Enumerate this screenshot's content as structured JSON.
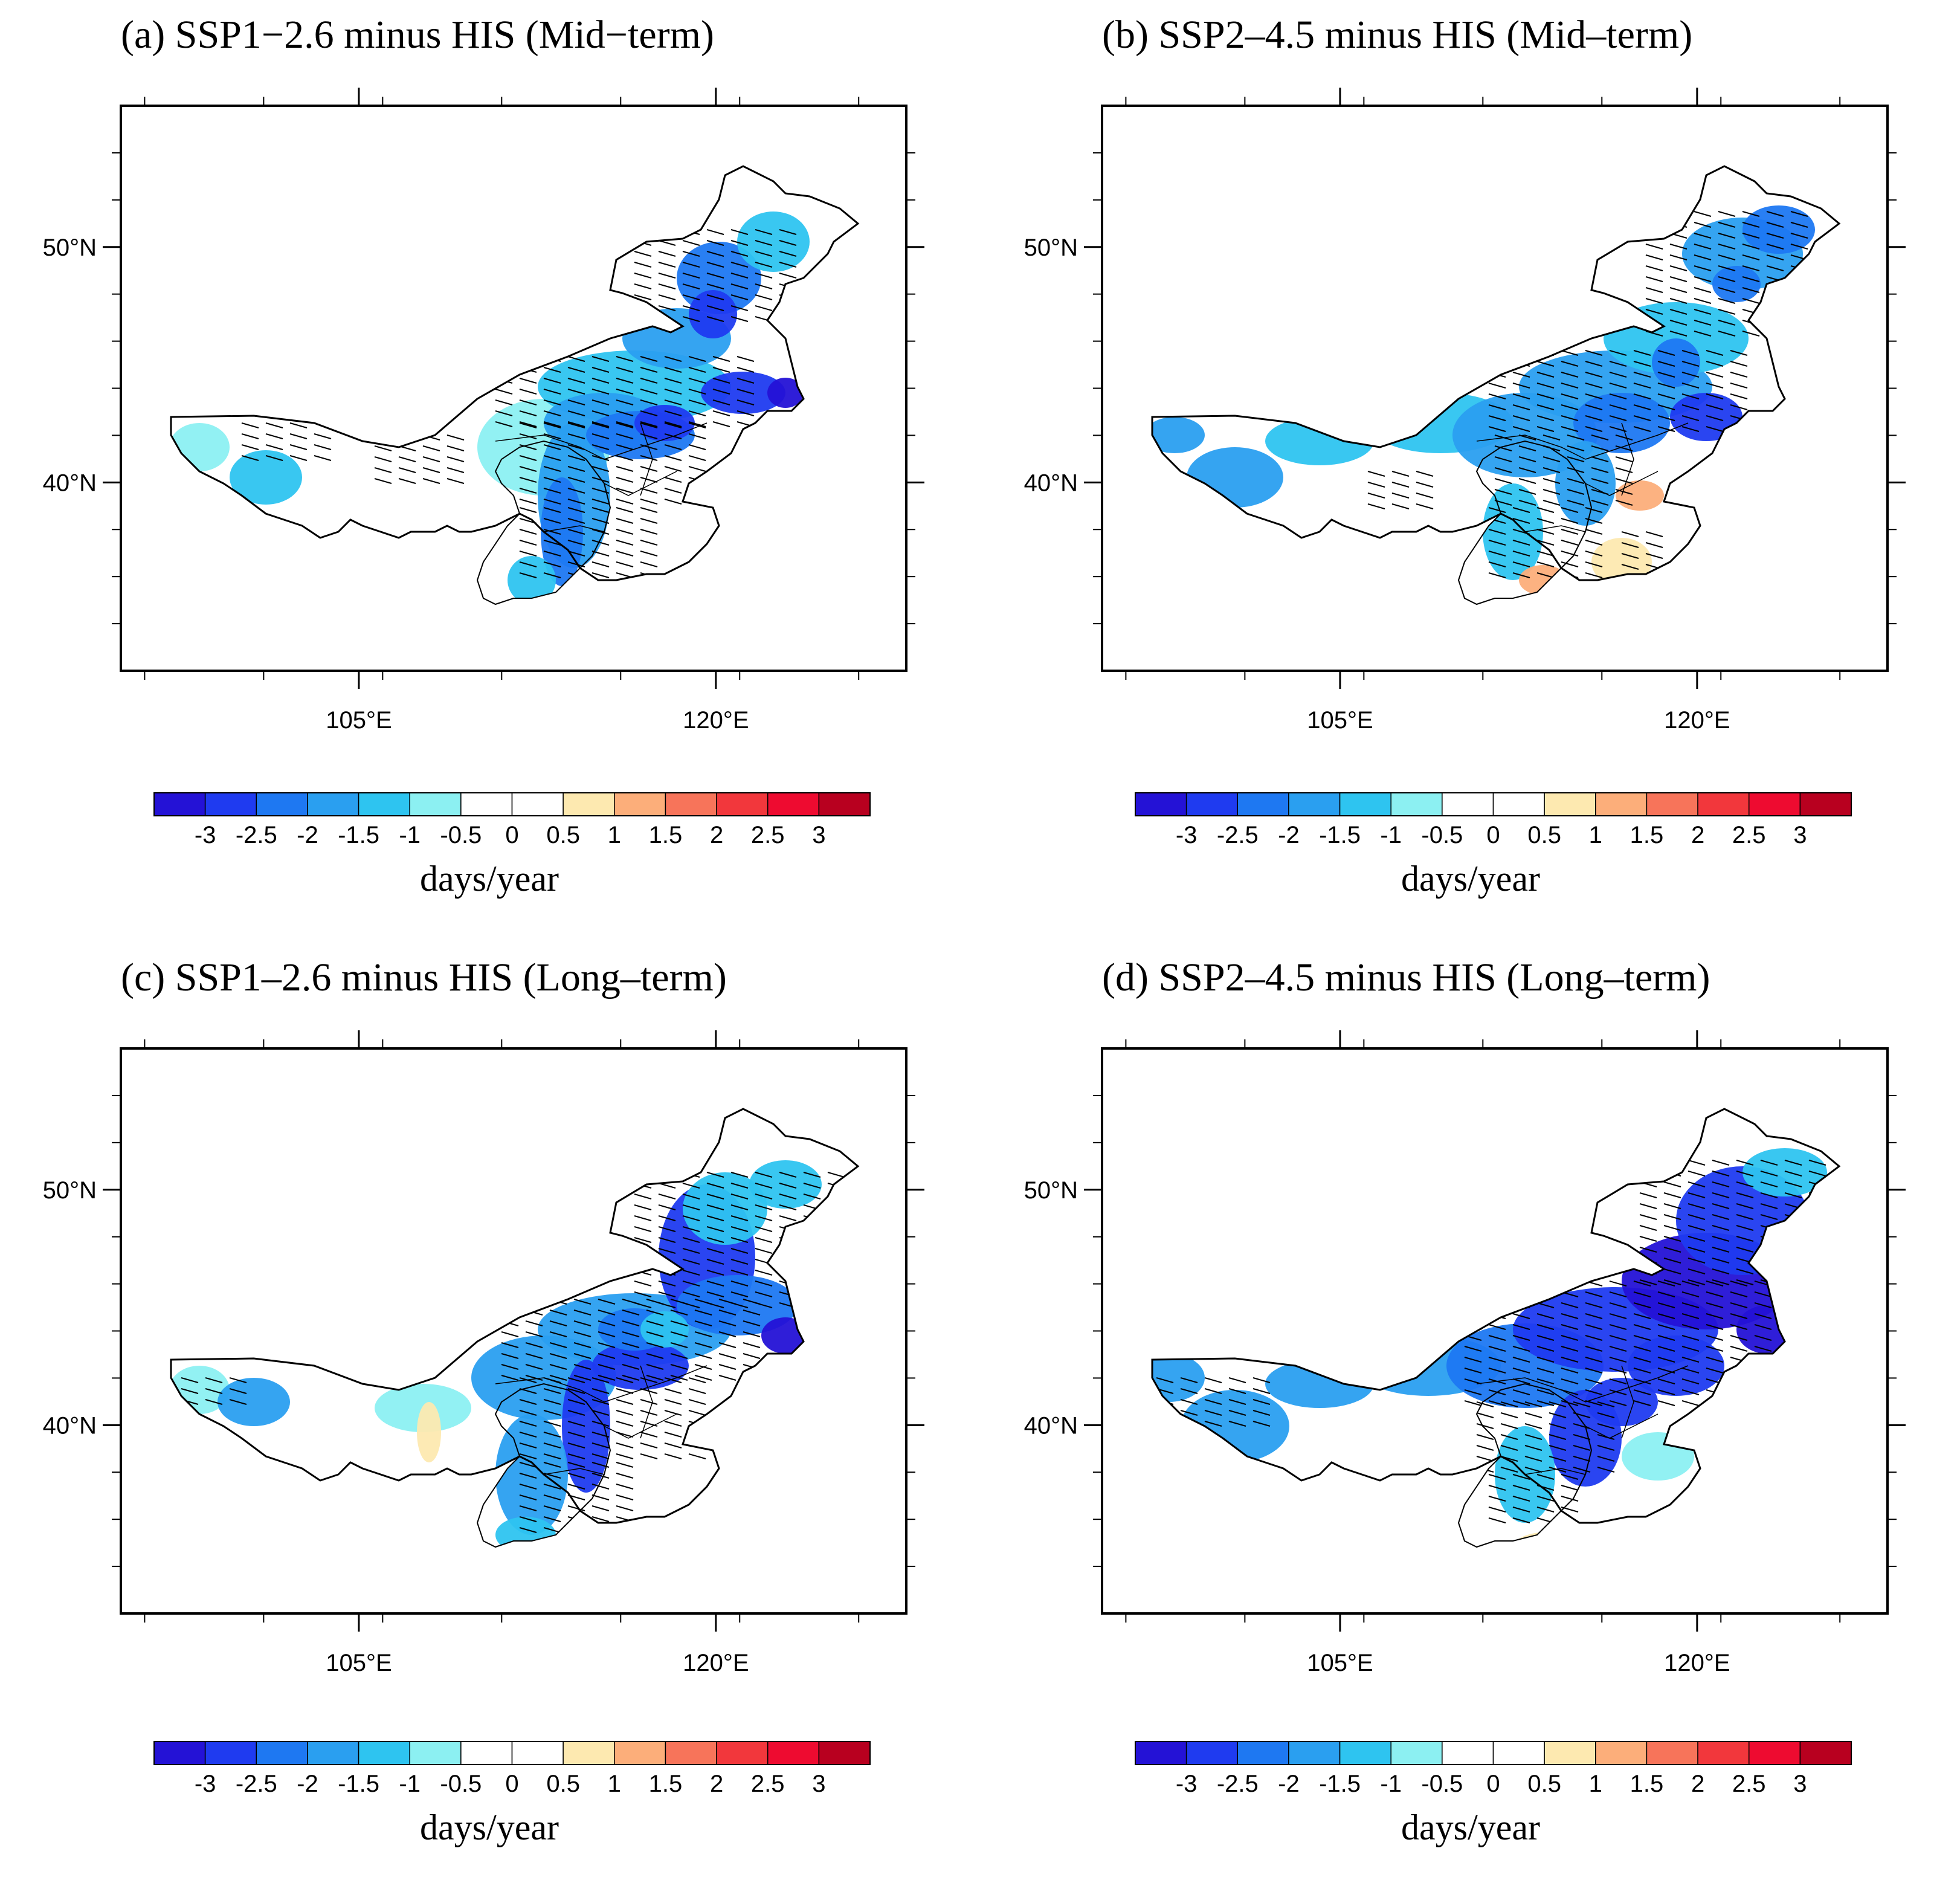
{
  "figure": {
    "panels": [
      {
        "id": "a",
        "title": "(a) SSP1−2.6 minus HIS (Mid−term)",
        "pattern": "a"
      },
      {
        "id": "b",
        "title": "(b) SSP2–4.5 minus HIS (Mid–term)",
        "pattern": "b"
      },
      {
        "id": "c",
        "title": "(c) SSP1–2.6 minus HIS (Long–term)",
        "pattern": "c"
      },
      {
        "id": "d",
        "title": "(d) SSP2–4.5 minus HIS (Long–term)",
        "pattern": "d"
      }
    ],
    "axes": {
      "lat_ticks": [
        "40°N",
        "50°N"
      ],
      "lon_ticks": [
        "105°E",
        "120°E"
      ]
    },
    "colorbar": {
      "units": "days/year",
      "tick_labels": [
        "-3",
        "-2.5",
        "-2",
        "-1.5",
        "-1",
        "-0.5",
        "0",
        "0.5",
        "1",
        "1.5",
        "2",
        "2.5",
        "3"
      ],
      "colors": [
        "#2412d6",
        "#1f3bf0",
        "#1e78f2",
        "#2a9ff0",
        "#2ec4f0",
        "#8cf0f2",
        "#ffffff",
        "#ffffff",
        "#fde9b0",
        "#fcae7a",
        "#f7745a",
        "#f2373c",
        "#ee0b30",
        "#b8001f"
      ]
    }
  },
  "chart_data": [
    {
      "type": "heatmap",
      "title": "(a) SSP1−2.6 minus HIS (Mid−term)",
      "xlabel": "",
      "ylabel": "",
      "x_ticks": [
        "105°E",
        "120°E"
      ],
      "y_ticks": [
        "40°N",
        "50°N"
      ],
      "xlim": [
        95,
        128
      ],
      "ylim": [
        32,
        56
      ],
      "colorbar_levels": [
        -3,
        -2.5,
        -2,
        -1.5,
        -1,
        -0.5,
        0,
        0.5,
        1,
        1.5,
        2,
        2.5,
        3
      ],
      "units": "days/year"
    },
    {
      "type": "heatmap",
      "title": "(b) SSP2–4.5 minus HIS (Mid–term)",
      "xlabel": "",
      "ylabel": "",
      "x_ticks": [
        "105°E",
        "120°E"
      ],
      "y_ticks": [
        "40°N",
        "50°N"
      ],
      "xlim": [
        95,
        128
      ],
      "ylim": [
        32,
        56
      ],
      "colorbar_levels": [
        -3,
        -2.5,
        -2,
        -1.5,
        -1,
        -0.5,
        0,
        0.5,
        1,
        1.5,
        2,
        2.5,
        3
      ],
      "units": "days/year"
    },
    {
      "type": "heatmap",
      "title": "(c) SSP1–2.6 minus HIS (Long–term)",
      "xlabel": "",
      "ylabel": "",
      "x_ticks": [
        "105°E",
        "120°E"
      ],
      "y_ticks": [
        "40°N",
        "50°N"
      ],
      "xlim": [
        95,
        128
      ],
      "ylim": [
        32,
        56
      ],
      "colorbar_levels": [
        -3,
        -2.5,
        -2,
        -1.5,
        -1,
        -0.5,
        0,
        0.5,
        1,
        1.5,
        2,
        2.5,
        3
      ],
      "units": "days/year"
    },
    {
      "type": "heatmap",
      "title": "(d) SSP2–4.5 minus HIS (Long–term)",
      "xlabel": "",
      "ylabel": "",
      "x_ticks": [
        "105°E",
        "120°E"
      ],
      "y_ticks": [
        "40°N",
        "50°N"
      ],
      "xlim": [
        95,
        128
      ],
      "ylim": [
        32,
        56
      ],
      "colorbar_levels": [
        -3,
        -2.5,
        -2,
        -1.5,
        -1,
        -0.5,
        0,
        0.5,
        1,
        1.5,
        2,
        2.5,
        3
      ],
      "units": "days/year"
    }
  ]
}
